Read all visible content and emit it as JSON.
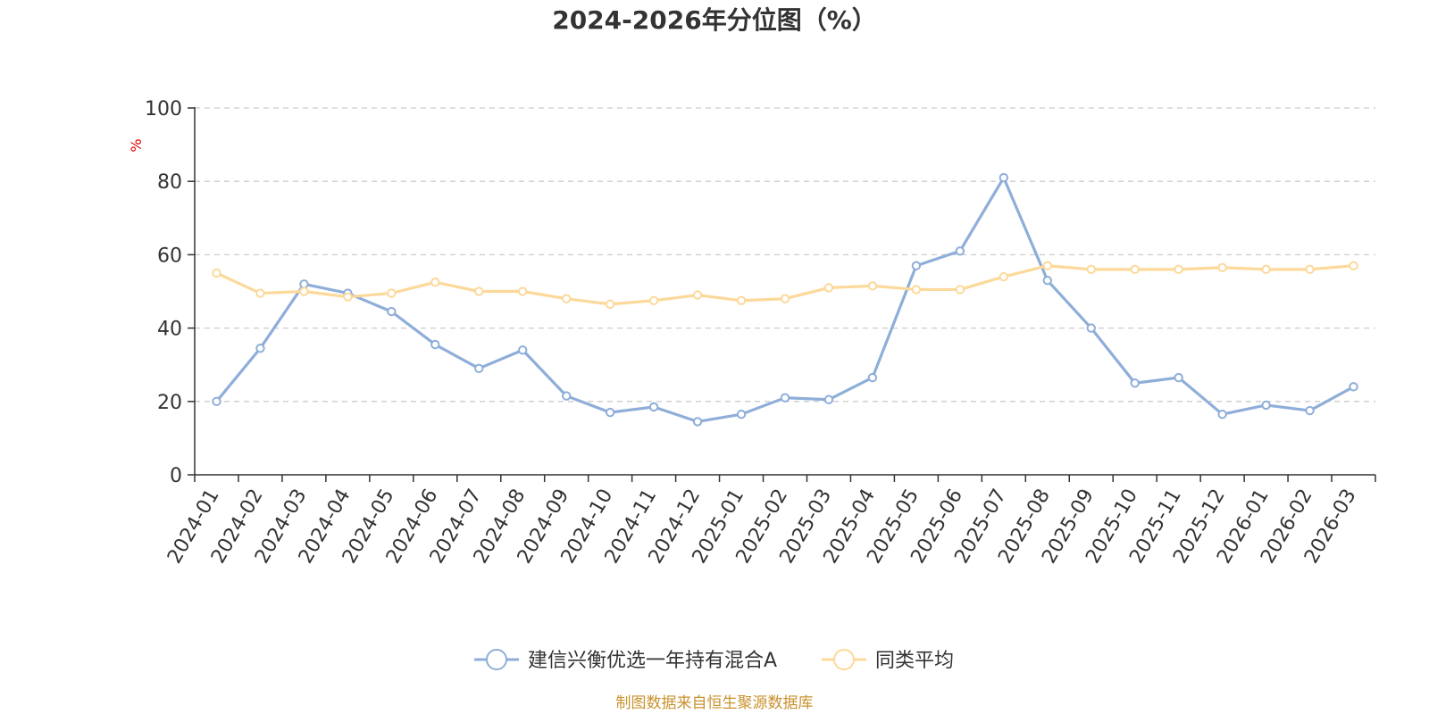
{
  "chart_data": {
    "type": "line",
    "title": "2024-2026年分位图（%）",
    "ylabel": "%",
    "ylim": [
      0,
      100
    ],
    "yticks": [
      0,
      20,
      40,
      60,
      80,
      100
    ],
    "grid": true,
    "legend_position": "bottom",
    "categories": [
      "2024-01",
      "2024-02",
      "2024-03",
      "2024-04",
      "2024-05",
      "2024-06",
      "2024-07",
      "2024-08",
      "2024-09",
      "2024-10",
      "2024-11",
      "2024-12",
      "2025-01",
      "2025-02",
      "2025-03",
      "2025-04",
      "2025-05",
      "2025-06",
      "2025-07",
      "2025-08",
      "2025-09",
      "2025-10",
      "2025-11",
      "2025-12",
      "2026-01",
      "2026-02",
      "2026-03"
    ],
    "series": [
      {
        "name": "建信兴衡优选一年持有混合A",
        "color": "#8eaed9",
        "values": [
          20,
          34.5,
          52,
          49.5,
          44.5,
          35.5,
          29,
          34,
          21.5,
          17,
          18.5,
          14.5,
          16.5,
          21,
          20.5,
          26.5,
          57,
          61,
          81,
          53,
          40,
          25,
          26.5,
          16.5,
          19,
          17.5,
          24
        ]
      },
      {
        "name": "同类平均",
        "color": "#fcd99a",
        "values": [
          55,
          49.5,
          50,
          48.5,
          49.5,
          52.5,
          50,
          50,
          48,
          46.5,
          47.5,
          49,
          47.5,
          48,
          51,
          51.5,
          50.5,
          50.5,
          54,
          57,
          56,
          56,
          56,
          56.5,
          56,
          56,
          57
        ]
      }
    ]
  },
  "source_note": "制图数据来自恒生聚源数据库"
}
